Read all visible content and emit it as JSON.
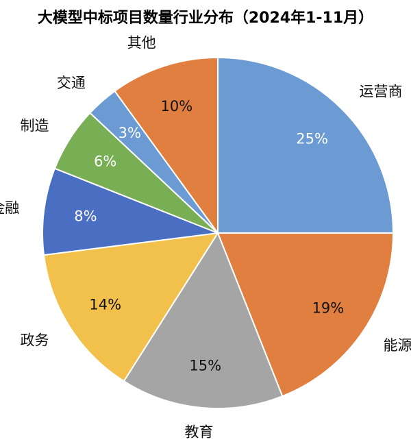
{
  "chart_data": {
    "type": "pie",
    "title": "大模型中标项目数量行业分布（2024年1-11月）",
    "start_angle_deg": 0,
    "direction": "clockwise",
    "slices": [
      {
        "label": "运营商",
        "value": 25,
        "value_label": "25%",
        "color": "#6b9bd2",
        "value_text": "light"
      },
      {
        "label": "能源",
        "value": 19,
        "value_label": "19%",
        "color": "#e07f3f",
        "value_text": "dark"
      },
      {
        "label": "教育",
        "value": 15,
        "value_label": "15%",
        "color": "#a5a5a5",
        "value_text": "dark"
      },
      {
        "label": "政务",
        "value": 14,
        "value_label": "14%",
        "color": "#f2c14b",
        "value_text": "dark"
      },
      {
        "label": "金融",
        "value": 8,
        "value_label": "8%",
        "color": "#4a6fc2",
        "value_text": "light"
      },
      {
        "label": "制造",
        "value": 6,
        "value_label": "6%",
        "color": "#78ae54",
        "value_text": "light"
      },
      {
        "label": "交通",
        "value": 3,
        "value_label": "3%",
        "color": "#6b9bd2",
        "value_text": "light"
      },
      {
        "label": "其他",
        "value": 10,
        "value_label": "10%",
        "color": "#e07f3f",
        "value_text": "dark"
      }
    ]
  }
}
